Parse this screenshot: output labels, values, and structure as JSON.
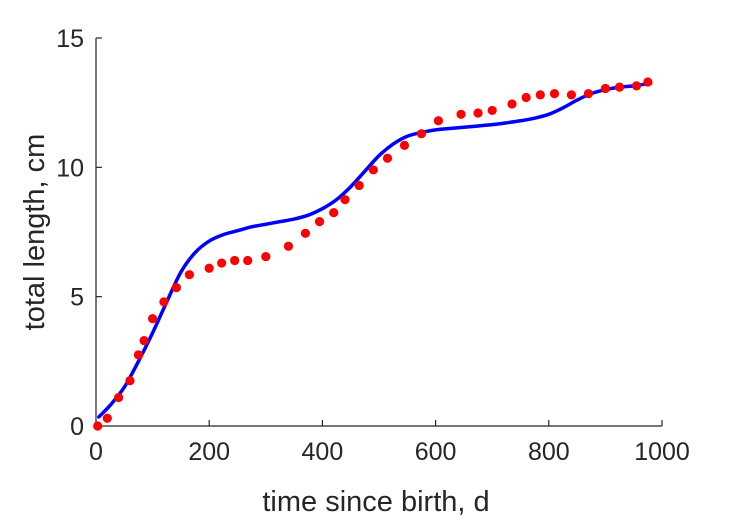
{
  "chart_data": {
    "type": "line",
    "title": "",
    "xlabel": "time since birth, d",
    "ylabel": "total length, cm",
    "xlim": [
      0,
      1000
    ],
    "ylim": [
      0,
      15
    ],
    "xticks": [
      0,
      200,
      400,
      600,
      800,
      1000
    ],
    "yticks": [
      0,
      5,
      10,
      15
    ],
    "xtick_labels": [
      "0",
      "200",
      "400",
      "600",
      "800",
      "1000"
    ],
    "ytick_labels": [
      "0",
      "5",
      "10",
      "15"
    ],
    "grid": false,
    "legend": "none",
    "series": [
      {
        "kind": "scatter",
        "color": "#ff0000",
        "x": [
          3,
          20,
          40,
          60,
          75,
          85,
          100,
          120,
          142,
          165,
          200,
          222,
          245,
          268,
          300,
          340,
          370,
          395,
          420,
          440,
          465,
          490,
          515,
          545,
          575,
          605,
          645,
          675,
          700,
          735,
          760,
          785,
          810,
          840,
          870,
          900,
          925,
          955,
          975
        ],
        "y": [
          0.0,
          0.3,
          1.1,
          1.75,
          2.75,
          3.3,
          4.15,
          4.8,
          5.35,
          5.85,
          6.1,
          6.3,
          6.4,
          6.4,
          6.55,
          6.95,
          7.45,
          7.9,
          8.25,
          8.75,
          9.3,
          9.9,
          10.35,
          10.85,
          11.3,
          11.8,
          12.05,
          12.1,
          12.2,
          12.45,
          12.7,
          12.8,
          12.85,
          12.8,
          12.85,
          13.05,
          13.1,
          13.15,
          13.3
        ]
      },
      {
        "kind": "line",
        "color": "#0000ff",
        "x": [
          5,
          25,
          50,
          75,
          100,
          125,
          150,
          175,
          200,
          225,
          250,
          275,
          300,
          325,
          350,
          375,
          400,
          425,
          450,
          475,
          500,
          525,
          550,
          575,
          600,
          625,
          650,
          675,
          700,
          725,
          750,
          775,
          800,
          825,
          850,
          875,
          900,
          925,
          950,
          980
        ],
        "y": [
          0.35,
          0.8,
          1.5,
          2.5,
          3.6,
          4.8,
          5.95,
          6.7,
          7.15,
          7.4,
          7.55,
          7.7,
          7.8,
          7.9,
          8.0,
          8.15,
          8.4,
          8.75,
          9.25,
          9.85,
          10.45,
          10.9,
          11.2,
          11.35,
          11.45,
          11.5,
          11.55,
          11.6,
          11.65,
          11.72,
          11.8,
          11.9,
          12.05,
          12.3,
          12.6,
          12.85,
          13.0,
          13.1,
          13.15,
          13.25
        ]
      }
    ]
  }
}
